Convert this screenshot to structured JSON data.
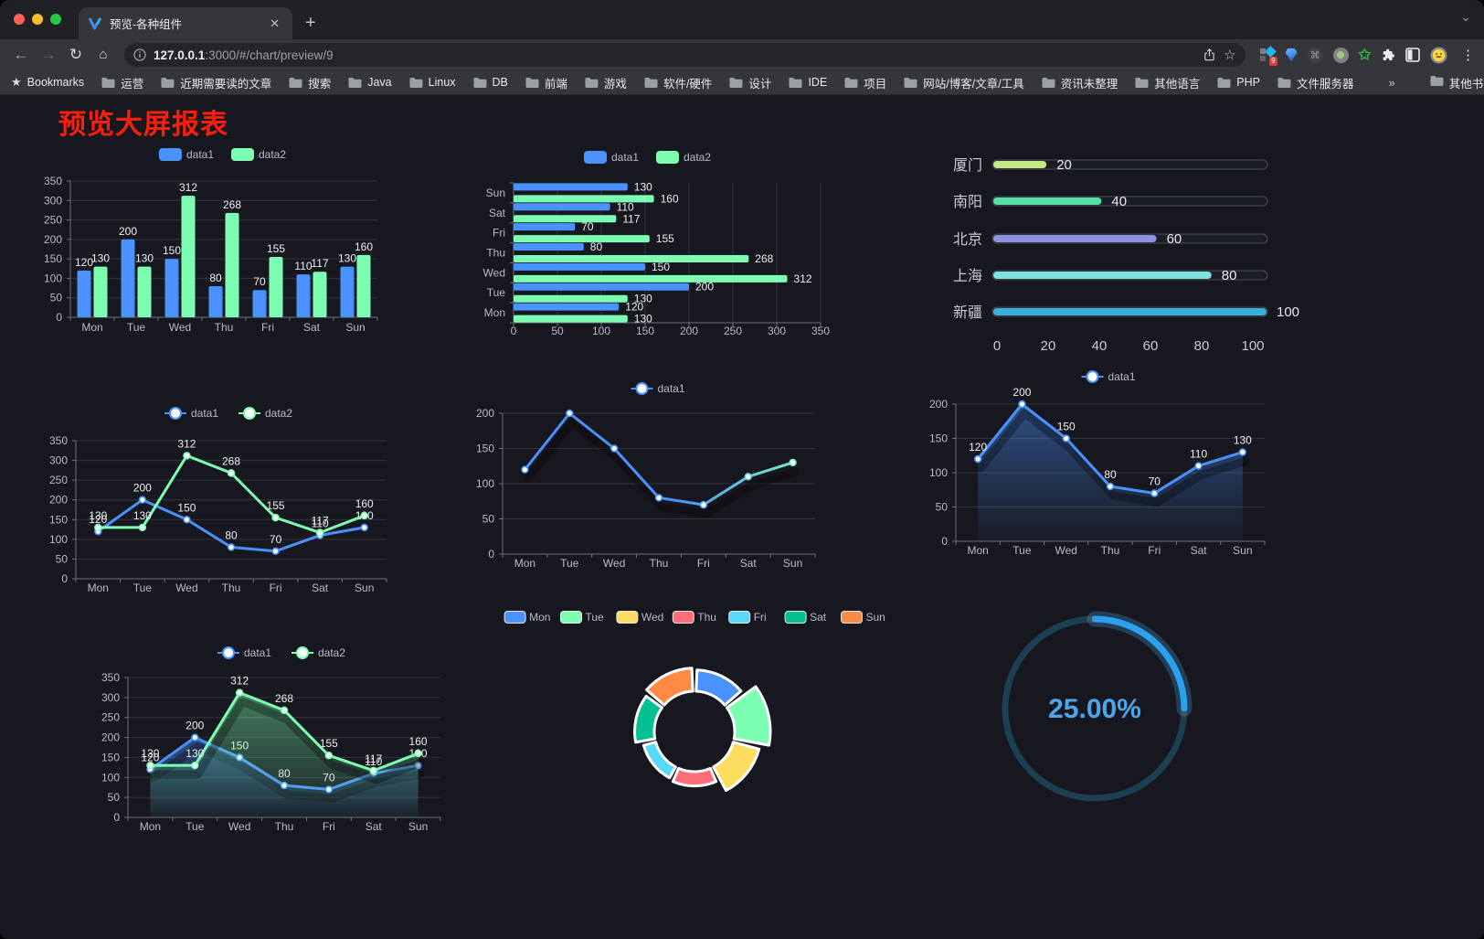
{
  "browser": {
    "tab_title": "预览-各种组件",
    "close_tab_label": "✕",
    "new_tab_label": "+",
    "url_host": "127.0.0.1",
    "url_rest": ":3000/#/chart/preview/9",
    "extension_badge": "9",
    "bookmarks_label": "Bookmarks",
    "bookmark_folders": [
      "运营",
      "近期需要读的文章",
      "搜索",
      "Java",
      "Linux",
      "DB",
      "前端",
      "游戏",
      "软件/硬件",
      "设计",
      "IDE",
      "项目",
      "网站/博客/文章/工具",
      "资讯未整理",
      "其他语言",
      "PHP",
      "文件服务器"
    ],
    "bookmarks_overflow": "»",
    "other_bookmarks": "其他书签"
  },
  "page": {
    "title": "预览大屏报表",
    "title_color": "#fa1e0e",
    "background": "#17181f"
  },
  "chart_data": [
    {
      "type": "bar",
      "categories": [
        "Mon",
        "Tue",
        "Wed",
        "Thu",
        "Fri",
        "Sat",
        "Sun"
      ],
      "series": [
        {
          "name": "data1",
          "color": "#4992ff",
          "values": [
            120,
            200,
            150,
            80,
            70,
            110,
            130
          ]
        },
        {
          "name": "data2",
          "color": "#7cffb2",
          "values": [
            130,
            130,
            312,
            268,
            155,
            117,
            160
          ]
        }
      ],
      "ylim": [
        0,
        350
      ],
      "ystep": 50,
      "legend_position": "top",
      "value_labels": true,
      "grid": true
    },
    {
      "type": "bar-horizontal",
      "categories": [
        "Mon",
        "Tue",
        "Wed",
        "Thu",
        "Fri",
        "Sat",
        "Sun"
      ],
      "categories_display_order": "bottom-to-top",
      "series": [
        {
          "name": "data1",
          "color": "#4992ff",
          "values": [
            120,
            200,
            150,
            80,
            70,
            110,
            130
          ]
        },
        {
          "name": "data2",
          "color": "#7cffb2",
          "values": [
            130,
            130,
            312,
            268,
            155,
            117,
            160
          ]
        }
      ],
      "xlim": [
        0,
        350
      ],
      "xstep": 50,
      "legend_position": "top",
      "value_labels": true,
      "grid": true
    },
    {
      "type": "progress-bars",
      "categories": [
        "厦门",
        "南阳",
        "北京",
        "上海",
        "新疆"
      ],
      "values": [
        20,
        40,
        60,
        80,
        100
      ],
      "colors": [
        "#c5e886",
        "#55dfa5",
        "#8d92e0",
        "#7fe3e1",
        "#37b1dc"
      ],
      "xlim": [
        0,
        100
      ],
      "xticks": [
        0,
        20,
        40,
        60,
        80,
        100
      ]
    },
    {
      "type": "line",
      "categories": [
        "Mon",
        "Tue",
        "Wed",
        "Thu",
        "Fri",
        "Sat",
        "Sun"
      ],
      "series": [
        {
          "name": "data1",
          "color": "#4992ff",
          "values": [
            120,
            200,
            150,
            80,
            70,
            110,
            130
          ]
        },
        {
          "name": "data2",
          "color": "#7cffb2",
          "values": [
            130,
            130,
            312,
            268,
            155,
            117,
            160
          ]
        }
      ],
      "ylim": [
        0,
        350
      ],
      "ystep": 50,
      "legend_position": "top",
      "value_labels": true,
      "markers": true
    },
    {
      "type": "line",
      "categories": [
        "Mon",
        "Tue",
        "Wed",
        "Thu",
        "Fri",
        "Sat",
        "Sun"
      ],
      "series": [
        {
          "name": "data1",
          "gradient": [
            "#4992ff",
            "#7cffb2"
          ],
          "values": [
            120,
            200,
            150,
            80,
            70,
            110,
            130
          ]
        }
      ],
      "ylim": [
        0,
        200
      ],
      "ystep": 50,
      "legend_position": "top",
      "value_labels": false,
      "markers": true,
      "shadow": true
    },
    {
      "type": "area",
      "categories": [
        "Mon",
        "Tue",
        "Wed",
        "Thu",
        "Fri",
        "Sat",
        "Sun"
      ],
      "series": [
        {
          "name": "data1",
          "color": "#4992ff",
          "values": [
            120,
            200,
            150,
            80,
            70,
            110,
            130
          ]
        }
      ],
      "ylim": [
        0,
        200
      ],
      "ystep": 50,
      "legend_position": "top",
      "value_labels": true,
      "markers": true,
      "shadow": true
    },
    {
      "type": "area",
      "categories": [
        "Mon",
        "Tue",
        "Wed",
        "Thu",
        "Fri",
        "Sat",
        "Sun"
      ],
      "series": [
        {
          "name": "data1",
          "color": "#4992ff",
          "values": [
            120,
            200,
            150,
            80,
            70,
            110,
            130
          ]
        },
        {
          "name": "data2",
          "color": "#7cffb2",
          "values": [
            130,
            130,
            312,
            268,
            155,
            117,
            160
          ]
        }
      ],
      "ylim": [
        0,
        350
      ],
      "ystep": 50,
      "legend_position": "top",
      "value_labels": true,
      "markers": true,
      "shadow": true
    },
    {
      "type": "pie-rose",
      "categories": [
        "Mon",
        "Tue",
        "Wed",
        "Thu",
        "Fri",
        "Sat",
        "Sun"
      ],
      "values": [
        120,
        200,
        150,
        80,
        70,
        110,
        130
      ],
      "colors": [
        "#4992ff",
        "#7cffb2",
        "#fddd60",
        "#ff6e76",
        "#58d9f9",
        "#05c091",
        "#ff8a45"
      ],
      "legend_position": "top",
      "style": "rose, rounded sectors, white borders, donut inner radius"
    },
    {
      "type": "gauge",
      "value": 25,
      "max": 100,
      "display": "25.00%",
      "color": "#2ba0ef",
      "track_color": "#1c3f52",
      "text_color": "#4da6e8"
    }
  ]
}
